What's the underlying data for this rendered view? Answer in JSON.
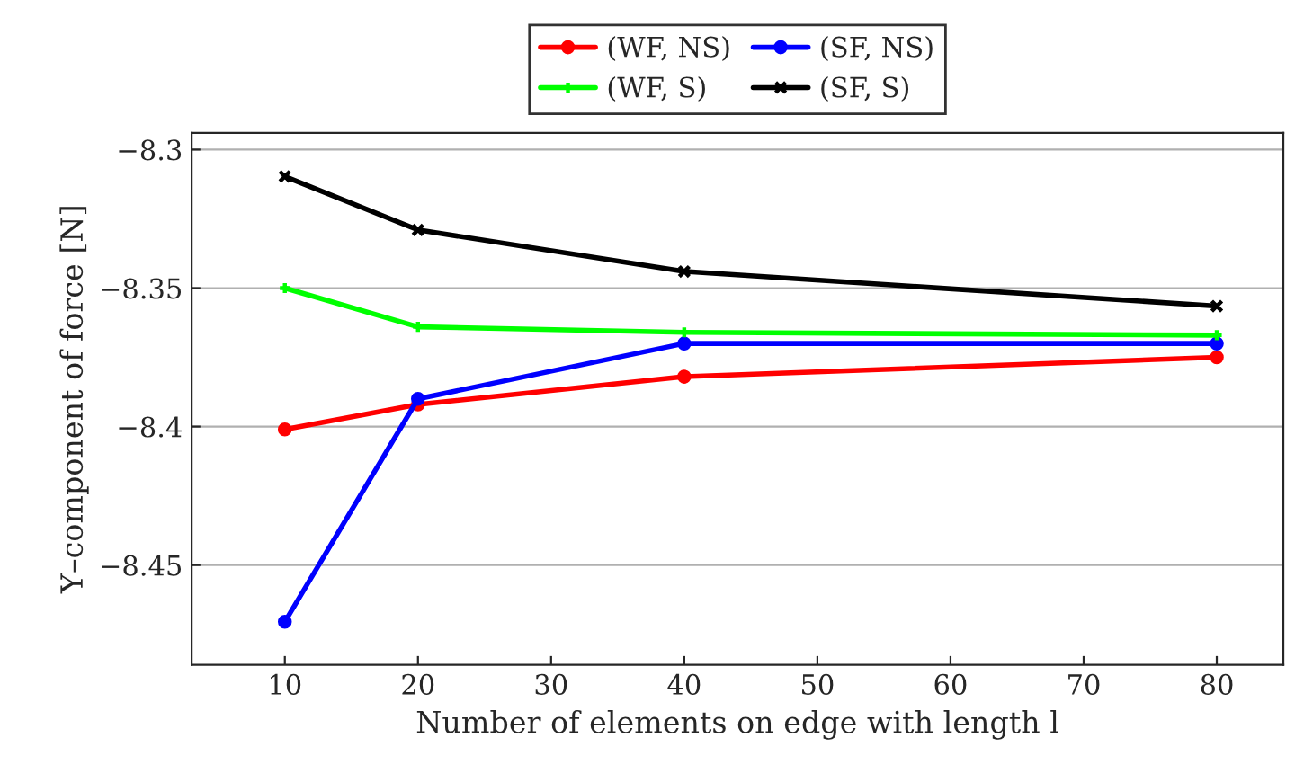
{
  "chart_data": {
    "type": "line",
    "xlabel": "Number of elements on edge with length l",
    "ylabel": "Y–component of force [N]",
    "x": [
      10,
      20,
      40,
      80
    ],
    "series": [
      {
        "name": "(WF, NS)",
        "color": "#ff0000",
        "marker": "circle",
        "values": [
          -8.401,
          -8.392,
          -8.382,
          -8.375
        ]
      },
      {
        "name": "(SF, NS)",
        "color": "#0000ff",
        "marker": "circle",
        "values": [
          -8.4705,
          -8.39,
          -8.37,
          -8.37
        ]
      },
      {
        "name": "(WF, S)",
        "color": "#00ff00",
        "marker": "cross",
        "values": [
          -8.35,
          -8.364,
          -8.366,
          -8.367
        ]
      },
      {
        "name": "(SF, S)",
        "color": "#000000",
        "marker": "x",
        "values": [
          -8.3097,
          -8.329,
          -8.344,
          -8.3565
        ]
      }
    ],
    "xlim": [
      3,
      85
    ],
    "ylim": [
      -8.486,
      -8.294
    ],
    "xticks": [
      10,
      20,
      30,
      40,
      50,
      60,
      70,
      80
    ],
    "yticks": [
      {
        "value": -8.45,
        "label": "−8.45"
      },
      {
        "value": -8.4,
        "label": "−8.4"
      },
      {
        "value": -8.35,
        "label": "−8.35"
      },
      {
        "value": -8.3,
        "label": "−8.3"
      }
    ],
    "grid": "y",
    "legend": "top",
    "line_style": "solid"
  }
}
